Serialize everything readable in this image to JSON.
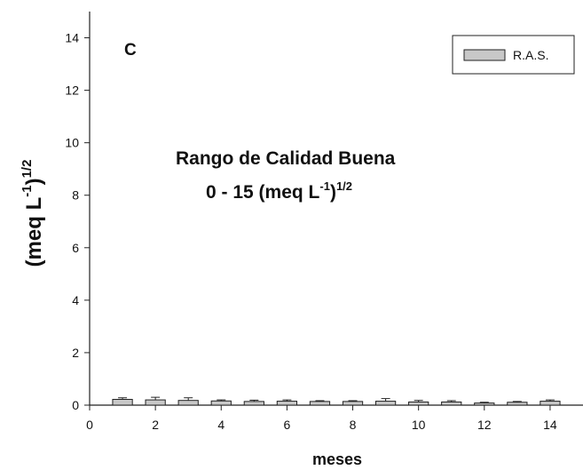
{
  "chart_data": {
    "type": "bar",
    "panel_letter": "C",
    "xlabel": "meses",
    "ylabel": {
      "main": "(meq L",
      "sup1": "-1",
      "close": ")",
      "sup2": "1/2"
    },
    "legend": {
      "placement": "top-right",
      "label": "R.A.S."
    },
    "annotation": {
      "line1": "Rango de Calidad Buena",
      "line2_main": "0 - 15 (meq L",
      "line2_sup1": "-1",
      "line2_close": ")",
      "line2_sup2": "1/2"
    },
    "xlim": [
      0,
      15
    ],
    "ylim": [
      0,
      15
    ],
    "xticks": [
      0,
      2,
      4,
      6,
      8,
      10,
      12,
      14
    ],
    "yticks": [
      0,
      2,
      4,
      6,
      8,
      10,
      12,
      14
    ],
    "grid": false,
    "series": [
      {
        "name": "R.A.S.",
        "color": "#c8c8c8",
        "x": [
          1,
          2,
          3,
          4,
          5,
          6,
          7,
          8,
          9,
          10,
          11,
          12,
          13,
          14
        ],
        "values": [
          0.22,
          0.2,
          0.18,
          0.16,
          0.14,
          0.15,
          0.14,
          0.14,
          0.15,
          0.12,
          0.12,
          0.08,
          0.11,
          0.15
        ],
        "error": [
          0.06,
          0.1,
          0.1,
          0.04,
          0.05,
          0.05,
          0.03,
          0.03,
          0.1,
          0.06,
          0.05,
          0.03,
          0.03,
          0.05
        ]
      }
    ]
  }
}
